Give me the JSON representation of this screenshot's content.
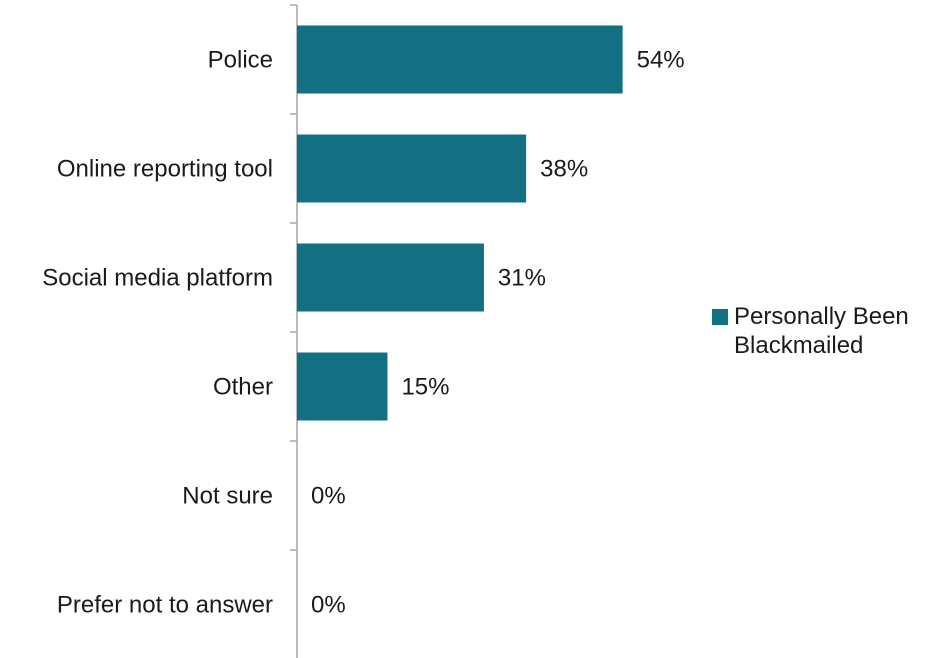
{
  "chart_data": {
    "type": "bar",
    "orientation": "horizontal",
    "categories": [
      "Police",
      "Online reporting tool",
      "Social media platform",
      "Other",
      "Not sure",
      "Prefer not to answer"
    ],
    "series": [
      {
        "name": "Personally Been Blackmailed",
        "values": [
          54,
          38,
          31,
          15,
          0,
          0
        ],
        "value_labels": [
          "54%",
          "38%",
          "31%",
          "15%",
          "0%",
          "0%"
        ],
        "color": "#136f82"
      }
    ],
    "unit": "%",
    "xlim": [
      0,
      100
    ],
    "grid": false,
    "legend": {
      "position": "right",
      "label": "Personally Been Blackmailed"
    }
  }
}
